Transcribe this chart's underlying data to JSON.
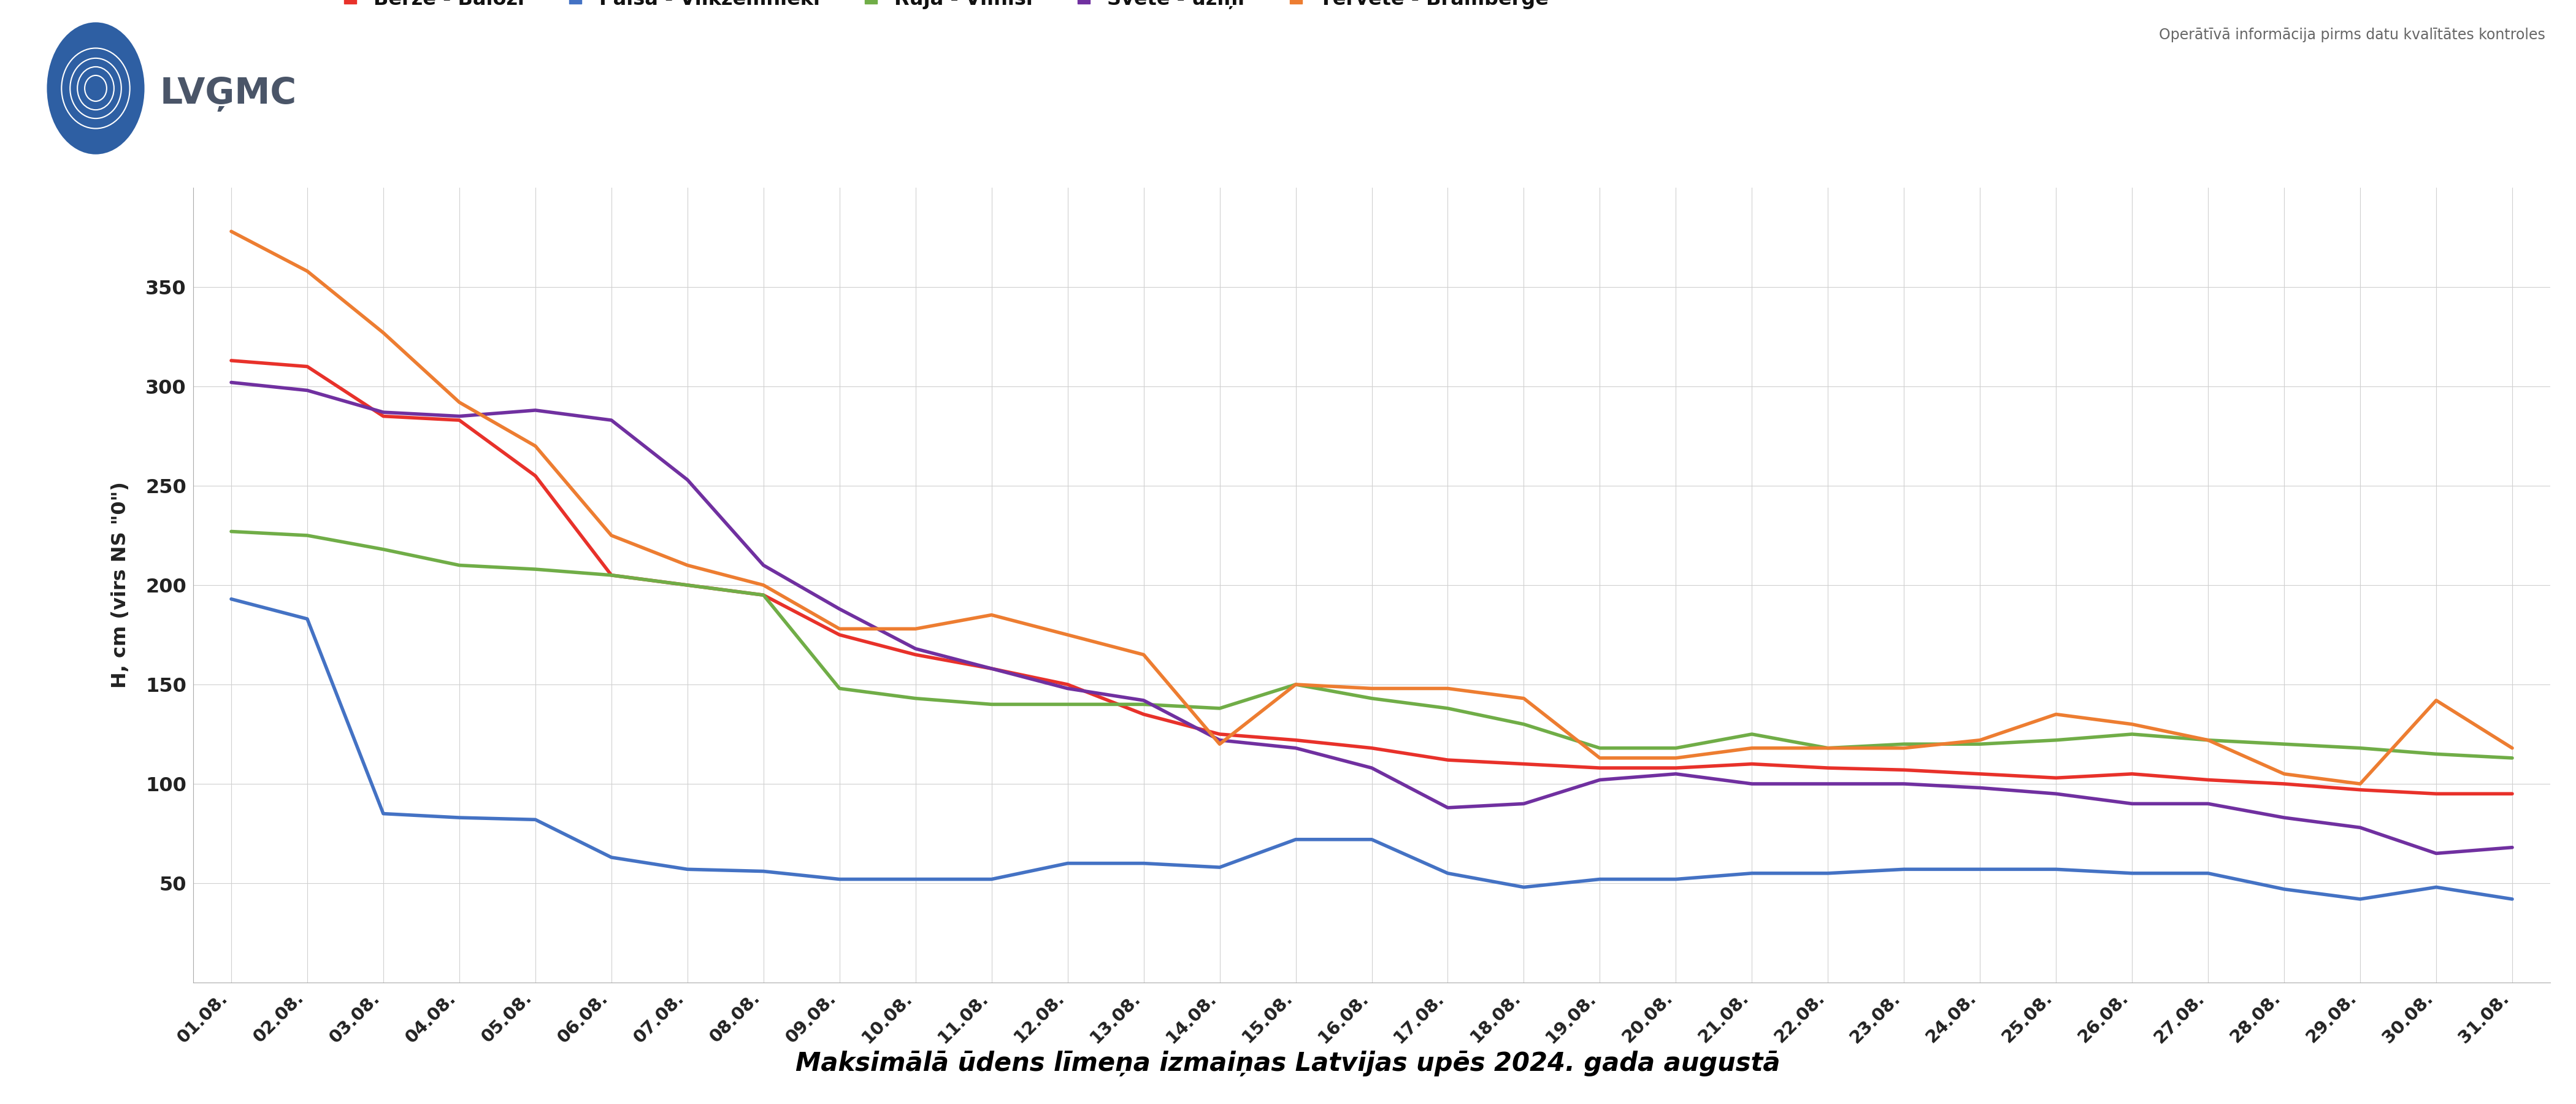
{
  "title": "Maksimālā ūdens līmeņa izmaiņas Latvijas upēs 2024. gada augustā",
  "ylabel": "H, cm (virs NS \"0\")",
  "subtitle": "Operātīvā informācija pirms datu kvalītātes kontroles",
  "days": [
    1,
    2,
    3,
    4,
    5,
    6,
    7,
    8,
    9,
    10,
    11,
    12,
    13,
    14,
    15,
    16,
    17,
    18,
    19,
    20,
    21,
    22,
    23,
    24,
    25,
    26,
    27,
    28,
    29,
    30,
    31
  ],
  "series": {
    "Bērze - Baloži": {
      "color": "#e8312a",
      "values": [
        313,
        310,
        285,
        283,
        255,
        205,
        200,
        195,
        175,
        165,
        158,
        150,
        135,
        125,
        122,
        118,
        112,
        110,
        108,
        108,
        110,
        108,
        107,
        105,
        103,
        105,
        102,
        100,
        97,
        95,
        95
      ]
    },
    "Palsa - Vilkzemnieki": {
      "color": "#4472c4",
      "values": [
        193,
        183,
        85,
        83,
        82,
        63,
        57,
        56,
        52,
        52,
        52,
        60,
        60,
        58,
        72,
        72,
        55,
        48,
        52,
        52,
        55,
        55,
        57,
        57,
        57,
        55,
        55,
        47,
        42,
        48,
        42
      ]
    },
    "Rūja - Vilnīši": {
      "color": "#70ad47",
      "values": [
        227,
        225,
        218,
        210,
        208,
        205,
        200,
        195,
        148,
        143,
        140,
        140,
        140,
        138,
        150,
        143,
        138,
        130,
        118,
        118,
        125,
        118,
        120,
        120,
        122,
        125,
        122,
        120,
        118,
        115,
        113
      ]
    },
    "Svēte - ūziņi": {
      "color": "#7030a0",
      "values": [
        302,
        298,
        287,
        285,
        288,
        283,
        253,
        210,
        188,
        168,
        158,
        148,
        142,
        122,
        118,
        108,
        88,
        90,
        102,
        105,
        100,
        100,
        100,
        98,
        95,
        90,
        90,
        83,
        78,
        65,
        68
      ]
    },
    "Tērvete - Bramberģe": {
      "color": "#ed7d31",
      "values": [
        378,
        358,
        327,
        292,
        270,
        225,
        210,
        200,
        178,
        178,
        185,
        175,
        165,
        120,
        150,
        148,
        148,
        143,
        113,
        113,
        118,
        118,
        118,
        122,
        135,
        130,
        122,
        105,
        100,
        142,
        118
      ]
    }
  },
  "ylim": [
    0,
    400
  ],
  "yticks": [
    50,
    100,
    150,
    200,
    250,
    300,
    350
  ],
  "bg_color": "#ffffff",
  "grid_color": "#d0d0d0",
  "logo_color": "#2e5fa3",
  "logo_text": "LVĢMC",
  "logo_text_color": "#4a5568"
}
